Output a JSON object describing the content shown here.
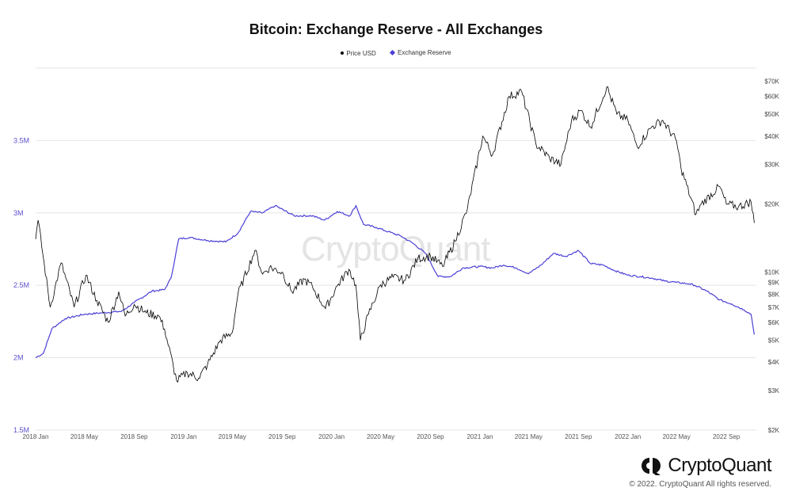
{
  "title": "Bitcoin: Exchange Reserve - All Exchanges",
  "legend": [
    {
      "label": "Price USD",
      "color": "#000000",
      "marker": "dot"
    },
    {
      "label": "Exchange Reserve",
      "color": "#4b3fd6",
      "marker": "diamond"
    }
  ],
  "watermark": "CryptoQuant",
  "brand": {
    "name": "CryptoQuant",
    "copyright": "© 2022. CryptoQuant All rights reserved."
  },
  "colors": {
    "price": "#000000",
    "reserve": "#4b3fd6",
    "grid": "#e6e6e6",
    "left_axis": "#5b50cc",
    "right_axis": "#444444"
  },
  "chart_data": {
    "type": "line",
    "title": "Bitcoin: Exchange Reserve - All Exchanges",
    "x_ticks": [
      "2018 Jan",
      "2018 May",
      "2018 Sep",
      "2019 Jan",
      "2019 May",
      "2019 Sep",
      "2020 Jan",
      "2020 May",
      "2020 Sep",
      "2021 Jan",
      "2021 May",
      "2021 Sep",
      "2022 Jan",
      "2022 May",
      "2022 Sep"
    ],
    "left_axis": {
      "scale": "linear",
      "range": [
        1500000,
        4000000
      ],
      "ticks": [
        1500000,
        2000000,
        2500000,
        3000000,
        3500000
      ],
      "tick_labels": [
        "1.5M",
        "2M",
        "2.5M",
        "3M",
        "3.5M"
      ]
    },
    "right_axis": {
      "scale": "log",
      "range": [
        2000,
        80000
      ],
      "ticks": [
        2000,
        3000,
        4000,
        5000,
        6000,
        7000,
        8000,
        9000,
        10000,
        20000,
        30000,
        40000,
        50000,
        60000,
        70000
      ],
      "tick_labels": [
        "$2K",
        "$3K",
        "$4K",
        "$5K",
        "$6K",
        "$7K",
        "$8K",
        "$9K",
        "$10K",
        "$20K",
        "$30K",
        "$40K",
        "$50K",
        "$60K",
        "$70K"
      ]
    },
    "grid": true,
    "legend_position": "top-center",
    "series": [
      {
        "name": "Price USD",
        "axis": "right",
        "x": [
          "2018-01-01",
          "2018-01-07",
          "2018-02-06",
          "2018-03-05",
          "2018-04-06",
          "2018-05-05",
          "2018-06-01",
          "2018-06-29",
          "2018-07-25",
          "2018-08-10",
          "2018-09-01",
          "2018-10-01",
          "2018-11-01",
          "2018-11-15",
          "2018-12-15",
          "2019-01-10",
          "2019-02-07",
          "2019-03-01",
          "2019-04-02",
          "2019-05-01",
          "2019-05-15",
          "2019-06-26",
          "2019-07-15",
          "2019-08-01",
          "2019-09-01",
          "2019-09-25",
          "2019-10-26",
          "2019-11-15",
          "2019-12-17",
          "2020-01-15",
          "2020-02-13",
          "2020-03-01",
          "2020-03-12",
          "2020-04-01",
          "2020-05-01",
          "2020-06-01",
          "2020-07-01",
          "2020-08-01",
          "2020-09-01",
          "2020-10-01",
          "2020-11-01",
          "2020-12-01",
          "2021-01-08",
          "2021-02-01",
          "2021-03-14",
          "2021-04-14",
          "2021-05-19",
          "2021-06-22",
          "2021-07-20",
          "2021-08-15",
          "2021-09-07",
          "2021-10-01",
          "2021-11-10",
          "2021-12-05",
          "2022-01-01",
          "2022-01-24",
          "2022-03-01",
          "2022-03-28",
          "2022-05-01",
          "2022-05-12",
          "2022-06-18",
          "2022-07-01",
          "2022-08-15",
          "2022-09-01",
          "2022-10-01",
          "2022-11-01",
          "2022-11-09"
        ],
        "y": [
          14000,
          17000,
          7000,
          11000,
          7000,
          9700,
          7500,
          6000,
          8200,
          6400,
          7200,
          6600,
          6400,
          5600,
          3300,
          3600,
          3400,
          3900,
          5000,
          5400,
          8000,
          12500,
          9800,
          10500,
          10000,
          8200,
          9300,
          8600,
          6900,
          8700,
          10300,
          8800,
          5000,
          6500,
          8800,
          9500,
          9200,
          11500,
          11800,
          10600,
          13700,
          19000,
          40000,
          33000,
          60000,
          63000,
          37000,
          32000,
          30000,
          47000,
          52000,
          44000,
          66000,
          50000,
          47000,
          36000,
          44000,
          47000,
          38000,
          29000,
          18000,
          20000,
          24000,
          20000,
          19500,
          20500,
          16500
        ]
      },
      {
        "name": "Exchange Reserve",
        "axis": "left",
        "x": [
          "2018-01-01",
          "2018-01-20",
          "2018-02-10",
          "2018-03-15",
          "2018-05-01",
          "2018-06-15",
          "2018-08-01",
          "2018-09-01",
          "2018-10-15",
          "2018-11-15",
          "2018-12-01",
          "2018-12-20",
          "2019-01-15",
          "2019-03-01",
          "2019-04-15",
          "2019-05-15",
          "2019-06-15",
          "2019-07-15",
          "2019-08-15",
          "2019-10-01",
          "2019-11-15",
          "2019-12-15",
          "2020-01-15",
          "2020-02-15",
          "2020-03-01",
          "2020-03-20",
          "2020-04-20",
          "2020-05-20",
          "2020-06-20",
          "2020-07-20",
          "2020-08-20",
          "2020-09-20",
          "2020-10-20",
          "2020-11-20",
          "2021-01-01",
          "2021-02-01",
          "2021-03-01",
          "2021-04-01",
          "2021-05-01",
          "2021-06-01",
          "2021-07-01",
          "2021-08-01",
          "2021-09-01",
          "2021-10-01",
          "2021-11-01",
          "2021-12-01",
          "2022-01-01",
          "2022-02-01",
          "2022-03-01",
          "2022-04-01",
          "2022-05-01",
          "2022-06-01",
          "2022-06-15",
          "2022-07-15",
          "2022-08-15",
          "2022-09-15",
          "2022-10-15",
          "2022-11-01",
          "2022-11-09"
        ],
        "y": [
          2000000,
          2030000,
          2200000,
          2270000,
          2300000,
          2310000,
          2320000,
          2380000,
          2460000,
          2470000,
          2550000,
          2820000,
          2830000,
          2810000,
          2800000,
          2860000,
          3010000,
          3000000,
          3050000,
          2980000,
          2980000,
          2950000,
          3010000,
          2980000,
          3050000,
          2920000,
          2900000,
          2870000,
          2840000,
          2790000,
          2720000,
          2560000,
          2560000,
          2620000,
          2630000,
          2620000,
          2640000,
          2620000,
          2580000,
          2640000,
          2720000,
          2700000,
          2740000,
          2650000,
          2640000,
          2600000,
          2570000,
          2560000,
          2550000,
          2530000,
          2520000,
          2510000,
          2500000,
          2460000,
          2400000,
          2370000,
          2330000,
          2300000,
          2160000
        ]
      }
    ]
  }
}
